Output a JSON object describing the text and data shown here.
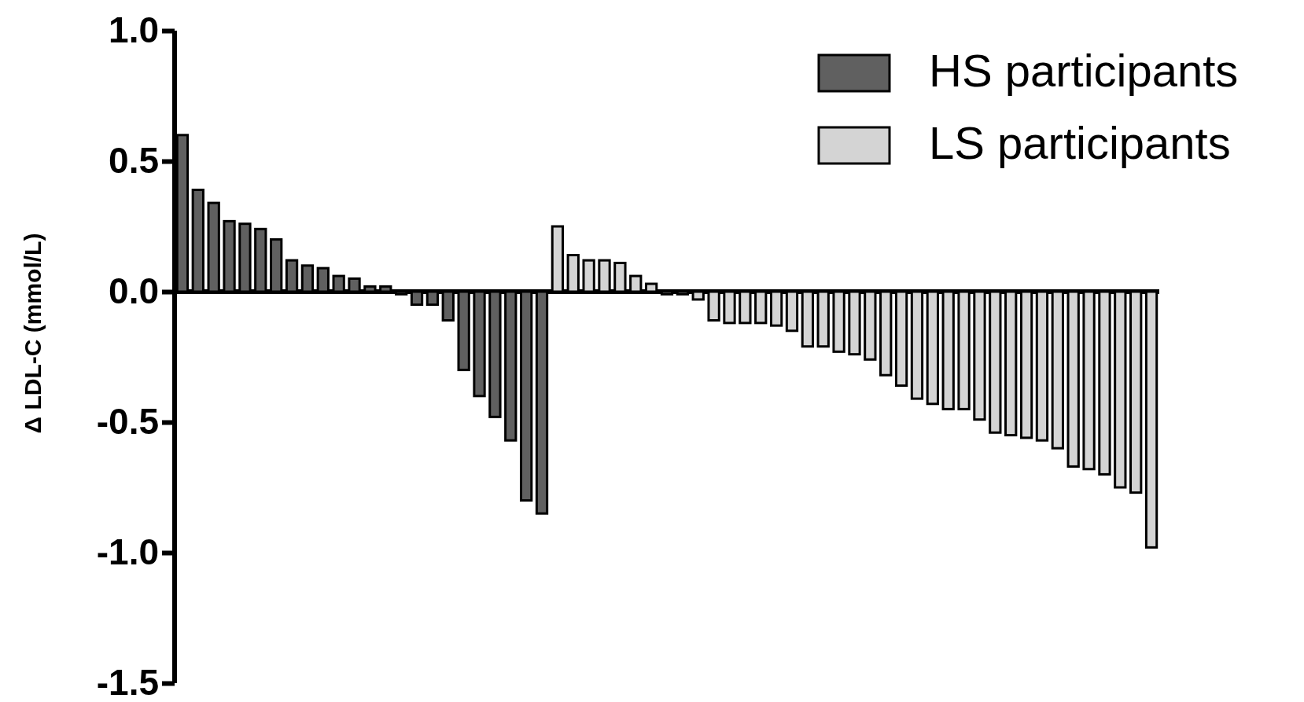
{
  "chart_data": {
    "type": "bar",
    "ylabel": "Δ LDL-C (mmol/L)",
    "categories": [
      null,
      null,
      null,
      null,
      null,
      null,
      null,
      null,
      null,
      null,
      null,
      null,
      null,
      null,
      null,
      null,
      null,
      null,
      null,
      null,
      null,
      null,
      null,
      null,
      null,
      null,
      null,
      null,
      null,
      null,
      null,
      null,
      null,
      null,
      null,
      null,
      null,
      null,
      null,
      null,
      null,
      null,
      null,
      null,
      null,
      null,
      null,
      null,
      null,
      null,
      null,
      null,
      null,
      null,
      null,
      null,
      null,
      null,
      null,
      null,
      null,
      null,
      null
    ],
    "series": [
      {
        "name": "HS participants",
        "color": "#606060",
        "values": [
          0.6,
          0.39,
          0.34,
          0.27,
          0.26,
          0.24,
          0.2,
          0.12,
          0.1,
          0.09,
          0.06,
          0.05,
          0.02,
          0.02,
          -0.01,
          -0.05,
          -0.05,
          -0.11,
          -0.3,
          -0.4,
          -0.48,
          -0.57,
          -0.8,
          -0.85,
          null,
          null,
          null,
          null,
          null,
          null,
          null,
          null,
          null,
          null,
          null,
          null,
          null,
          null,
          null,
          null,
          null,
          null,
          null,
          null,
          null,
          null,
          null,
          null,
          null,
          null,
          null,
          null,
          null,
          null,
          null,
          null,
          null,
          null,
          null,
          null,
          null,
          null,
          null
        ]
      },
      {
        "name": "LS participants",
        "color": "#d4d4d4",
        "values": [
          null,
          null,
          null,
          null,
          null,
          null,
          null,
          null,
          null,
          null,
          null,
          null,
          null,
          null,
          null,
          null,
          null,
          null,
          null,
          null,
          null,
          null,
          null,
          null,
          0.25,
          0.14,
          0.12,
          0.12,
          0.11,
          0.06,
          0.03,
          -0.01,
          -0.01,
          -0.03,
          -0.11,
          -0.12,
          -0.12,
          -0.12,
          -0.13,
          -0.15,
          -0.21,
          -0.21,
          -0.23,
          -0.24,
          -0.26,
          -0.32,
          -0.36,
          -0.41,
          -0.43,
          -0.45,
          -0.45,
          -0.49,
          -0.54,
          -0.55,
          -0.56,
          -0.57,
          -0.6,
          -0.67,
          -0.68,
          -0.7,
          -0.75,
          -0.77,
          -0.98
        ]
      }
    ],
    "ylim": [
      -1.5,
      1.0
    ],
    "yticks": [
      {
        "value": -1.5,
        "label": "-1.5"
      },
      {
        "value": -1.0,
        "label": "-1.0"
      },
      {
        "value": -0.5,
        "label": "-0.5"
      },
      {
        "value": 0,
        "label": "0.0"
      },
      {
        "value": 0.5,
        "label": "0.5"
      },
      {
        "value": 1.0,
        "label": "1.0"
      }
    ],
    "tick_labels": "y",
    "legend": "top right",
    "stacked": true
  }
}
